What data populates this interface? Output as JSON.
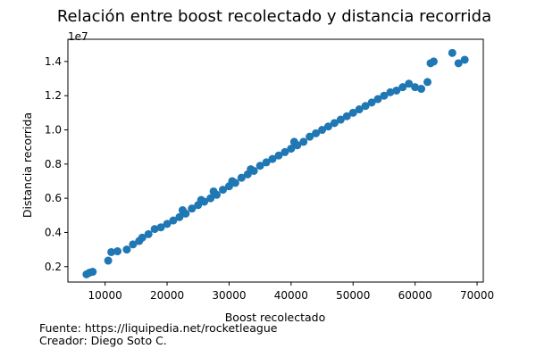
{
  "chart_data": {
    "type": "scatter",
    "title": "Relación entre boost recolectado y distancia recorrida",
    "xlabel": "Boost recolectado",
    "ylabel": "Distancia recorrida",
    "y_offset_label": "1e7",
    "xlim": [
      4000,
      71000
    ],
    "ylim": [
      1100000,
      15300000
    ],
    "x_ticks": [
      10000,
      20000,
      30000,
      40000,
      50000,
      60000,
      70000
    ],
    "x_tick_labels": [
      "10000",
      "20000",
      "30000",
      "40000",
      "50000",
      "60000",
      "70000"
    ],
    "y_ticks": [
      2000000,
      4000000,
      6000000,
      8000000,
      10000000,
      12000000,
      14000000
    ],
    "y_tick_labels": [
      "0.2",
      "0.4",
      "0.6",
      "0.8",
      "1.0",
      "1.2",
      "1.4"
    ],
    "grid": false,
    "marker_color": "#1f77b4",
    "series": [
      {
        "points": [
          [
            7000,
            1550000
          ],
          [
            7500,
            1650000
          ],
          [
            8000,
            1700000
          ],
          [
            10500,
            2350000
          ],
          [
            11000,
            2850000
          ],
          [
            12000,
            2900000
          ],
          [
            13500,
            3000000
          ],
          [
            14500,
            3300000
          ],
          [
            15500,
            3500000
          ],
          [
            16000,
            3700000
          ],
          [
            17000,
            3900000
          ],
          [
            18000,
            4200000
          ],
          [
            19000,
            4300000
          ],
          [
            20000,
            4500000
          ],
          [
            21000,
            4700000
          ],
          [
            22000,
            4900000
          ],
          [
            22500,
            5300000
          ],
          [
            23000,
            5100000
          ],
          [
            24000,
            5400000
          ],
          [
            25000,
            5600000
          ],
          [
            25500,
            5900000
          ],
          [
            26000,
            5800000
          ],
          [
            27000,
            6000000
          ],
          [
            27500,
            6400000
          ],
          [
            28000,
            6200000
          ],
          [
            29000,
            6500000
          ],
          [
            30000,
            6700000
          ],
          [
            30500,
            7000000
          ],
          [
            31000,
            6900000
          ],
          [
            32000,
            7200000
          ],
          [
            33000,
            7400000
          ],
          [
            33500,
            7700000
          ],
          [
            34000,
            7600000
          ],
          [
            35000,
            7900000
          ],
          [
            36000,
            8100000
          ],
          [
            37000,
            8300000
          ],
          [
            38000,
            8500000
          ],
          [
            39000,
            8700000
          ],
          [
            40000,
            8900000
          ],
          [
            40500,
            9300000
          ],
          [
            41000,
            9100000
          ],
          [
            42000,
            9300000
          ],
          [
            43000,
            9600000
          ],
          [
            44000,
            9800000
          ],
          [
            45000,
            10000000
          ],
          [
            46000,
            10200000
          ],
          [
            47000,
            10400000
          ],
          [
            48000,
            10600000
          ],
          [
            49000,
            10800000
          ],
          [
            50000,
            11000000
          ],
          [
            51000,
            11200000
          ],
          [
            52000,
            11400000
          ],
          [
            53000,
            11600000
          ],
          [
            54000,
            11800000
          ],
          [
            55000,
            12000000
          ],
          [
            56000,
            12200000
          ],
          [
            57000,
            12300000
          ],
          [
            58000,
            12500000
          ],
          [
            59000,
            12700000
          ],
          [
            60000,
            12500000
          ],
          [
            61000,
            12400000
          ],
          [
            62000,
            12800000
          ],
          [
            63000,
            14000000
          ],
          [
            62500,
            13900000
          ],
          [
            66000,
            14500000
          ],
          [
            67000,
            13900000
          ],
          [
            68000,
            14100000
          ]
        ]
      }
    ]
  },
  "footer": {
    "source": "Fuente: https://liquipedia.net/rocketleague",
    "creator": "Creador: Diego Soto C."
  }
}
